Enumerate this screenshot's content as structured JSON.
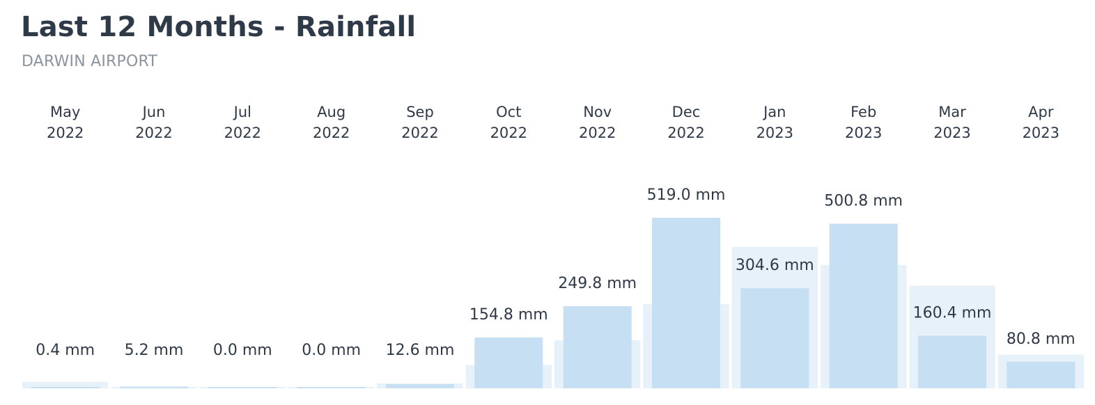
{
  "header": {
    "title": "Last 12 Months - Rainfall",
    "subtitle": "DARWIN AIRPORT"
  },
  "colors": {
    "bar": "#c6dff2",
    "average_bar": "#e6f1fa",
    "text": "#2f3a48",
    "subtitle": "#8a949f"
  },
  "chart_data": {
    "type": "bar",
    "title": "Last 12 Months - Rainfall",
    "subtitle": "DARWIN AIRPORT",
    "categories": [
      {
        "month": "May",
        "year": "2022"
      },
      {
        "month": "Jun",
        "year": "2022"
      },
      {
        "month": "Jul",
        "year": "2022"
      },
      {
        "month": "Aug",
        "year": "2022"
      },
      {
        "month": "Sep",
        "year": "2022"
      },
      {
        "month": "Oct",
        "year": "2022"
      },
      {
        "month": "Nov",
        "year": "2022"
      },
      {
        "month": "Dec",
        "year": "2022"
      },
      {
        "month": "Jan",
        "year": "2023"
      },
      {
        "month": "Feb",
        "year": "2023"
      },
      {
        "month": "Mar",
        "year": "2023"
      },
      {
        "month": "Apr",
        "year": "2023"
      }
    ],
    "unit": "mm",
    "series": [
      {
        "values": [
          0.4,
          5.2,
          0.0,
          0.0,
          12.6,
          154.8,
          249.8,
          519.0,
          304.6,
          500.8,
          160.4,
          80.8
        ],
        "labels": [
          "0.4 mm",
          "5.2 mm",
          "0.0 mm",
          "0.0 mm",
          "12.6 mm",
          "154.8 mm",
          "249.8 mm",
          "519.0 mm",
          "304.6 mm",
          "500.8 mm",
          "160.4 mm",
          "80.8 mm"
        ],
        "color": "#c6dff2"
      },
      {
        "values": [
          20,
          3,
          1.5,
          1.5,
          15,
          71,
          146,
          256,
          430,
          375,
          312,
          102
        ],
        "color": "#e6f1fa"
      }
    ],
    "ylim": [
      0,
      540
    ],
    "grid": false,
    "legend": "none"
  }
}
